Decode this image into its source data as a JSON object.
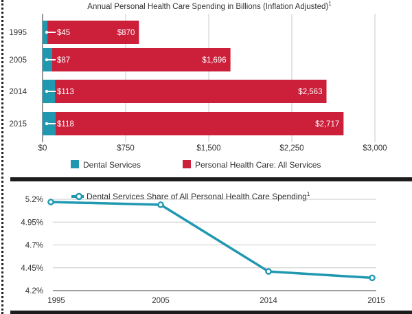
{
  "colors": {
    "dental": "#1f98b0",
    "all_services": "#cc1f3a",
    "line": "#1f98b0",
    "grid": "#c8c8c8",
    "axis": "#555555"
  },
  "chart_data": [
    {
      "type": "bar",
      "orientation": "horizontal",
      "stacked": true,
      "title": "Annual Personal Health Care Spending in Billions (Inflation Adjusted)",
      "title_superscript": "1",
      "categories": [
        "1995",
        "2005",
        "2014",
        "2015"
      ],
      "series": [
        {
          "name": "Dental Services",
          "values": [
            45,
            87,
            113,
            118
          ],
          "labels": [
            "$45",
            "$87",
            "$113",
            "$118"
          ]
        },
        {
          "name": "Personal Health Care: All Services",
          "values": [
            870,
            1696,
            2563,
            2717
          ],
          "labels": [
            "$870",
            "$1,696",
            "$2,563",
            "$2,717"
          ]
        }
      ],
      "xlim": [
        0,
        3000
      ],
      "xticks": [
        0,
        750,
        1500,
        2250,
        3000
      ],
      "xtick_labels": [
        "$0",
        "$750",
        "$1,500",
        "$2,250",
        "$3,000"
      ],
      "grid": true,
      "legend": [
        "Dental Services",
        "Personal Health Care: All Services"
      ],
      "legend_position": "bottom"
    },
    {
      "type": "line",
      "title": "Dental Services Share of All Personal Health Care Spending",
      "title_superscript": "1",
      "x": [
        "1995",
        "2005",
        "2014",
        "2015"
      ],
      "series": [
        {
          "name": "Dental Services Share of All Personal Health Care Spending",
          "values": [
            5.17,
            5.14,
            4.41,
            4.34
          ]
        }
      ],
      "ylim": [
        4.2,
        5.2
      ],
      "yticks": [
        4.2,
        4.45,
        4.7,
        4.95,
        5.2
      ],
      "ytick_labels": [
        "4.2%",
        "4.45%",
        "4.7%",
        "4.95%",
        "5.2%"
      ],
      "grid": true,
      "legend_position": "top"
    }
  ]
}
